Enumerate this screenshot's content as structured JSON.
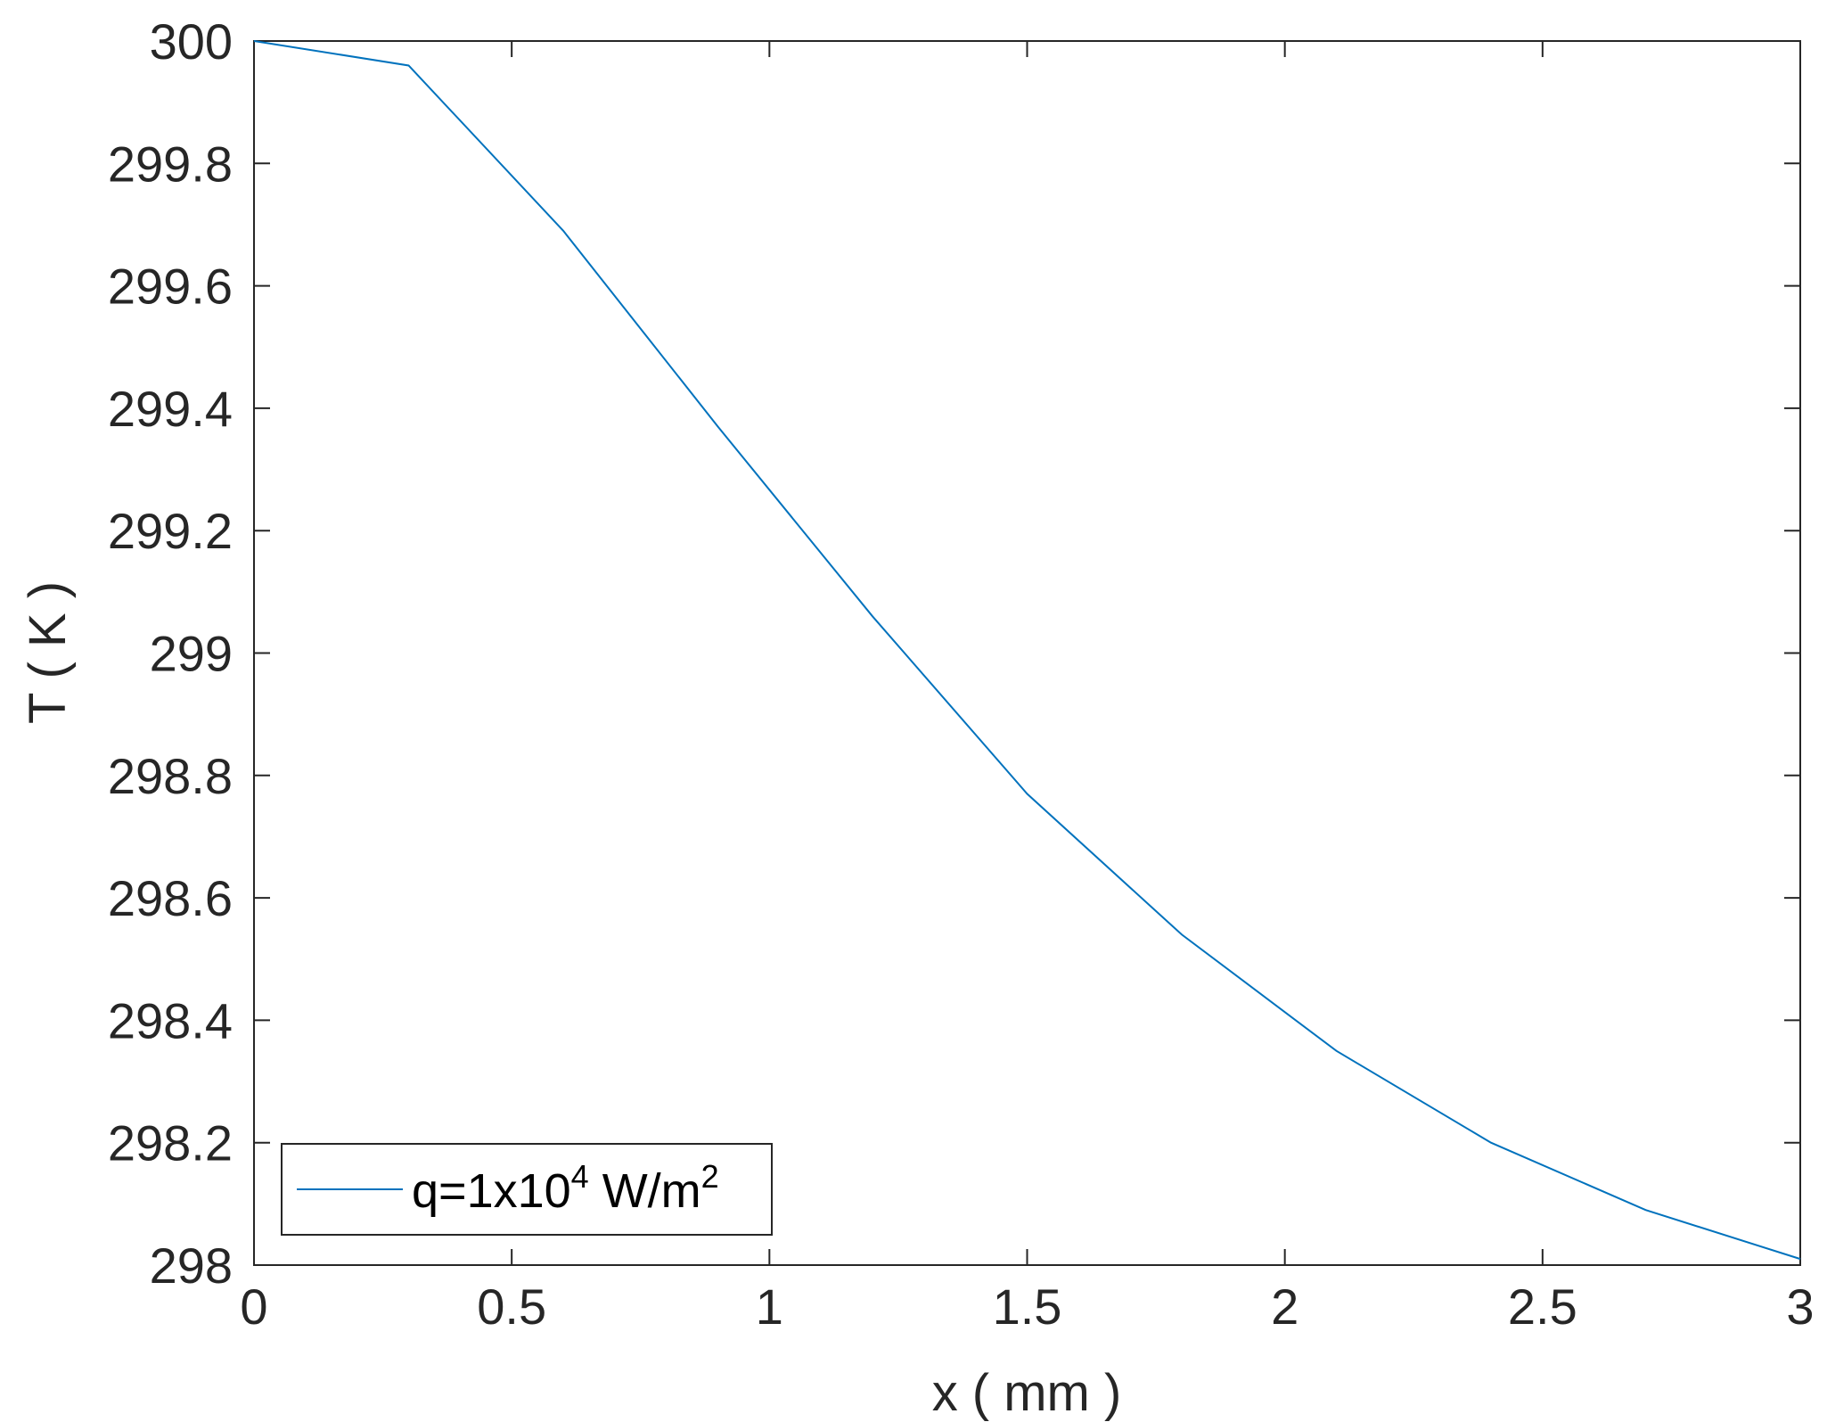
{
  "chart_data": {
    "type": "line",
    "title": "",
    "xlabel": "x ( mm )",
    "ylabel": "T ( K )",
    "xlim": [
      0,
      3
    ],
    "ylim": [
      298,
      300
    ],
    "xticks": [
      0,
      0.5,
      1,
      1.5,
      2,
      2.5,
      3
    ],
    "xtick_labels": [
      "0",
      "0.5",
      "1",
      "1.5",
      "2",
      "2.5",
      "3"
    ],
    "yticks": [
      298,
      298.2,
      298.4,
      298.6,
      298.8,
      299,
      299.2,
      299.4,
      299.6,
      299.8,
      300
    ],
    "ytick_labels": [
      "298",
      "298.2",
      "298.4",
      "298.6",
      "298.8",
      "299",
      "299.2",
      "299.4",
      "299.6",
      "299.8",
      "300"
    ],
    "grid": false,
    "legend_position": "bottom-left",
    "series": [
      {
        "legend_base": "q=1x10",
        "legend_exp1": "4",
        "legend_unit": " W/m",
        "legend_exp2": "2",
        "color": "#0072BD",
        "x": [
          0,
          0.3,
          0.6,
          0.9,
          1.2,
          1.5,
          1.8,
          2.1,
          2.4,
          2.7,
          3.0
        ],
        "y": [
          300.0,
          299.96,
          299.69,
          299.37,
          299.06,
          298.77,
          298.54,
          298.35,
          298.2,
          298.09,
          298.01
        ]
      }
    ]
  }
}
